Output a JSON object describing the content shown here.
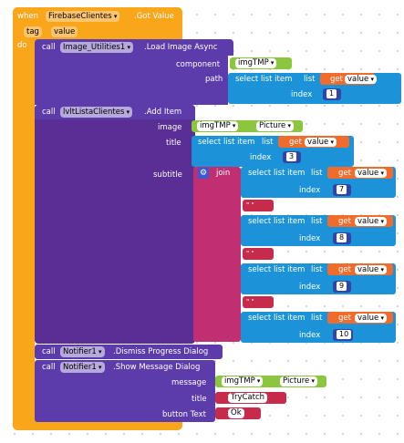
{
  "event": {
    "when": "when",
    "component": "FirebaseClientes",
    "event": ".Got Value",
    "param_tag": "tag",
    "param_value": "value",
    "do": "do"
  },
  "load": {
    "call": "call",
    "component": "Image_Utilities1",
    "method": ".Load Image Async",
    "arg_component": "component",
    "arg_path": "path",
    "var": "imgTMP",
    "select": "select list item",
    "list": "list",
    "get": "get",
    "value": "value",
    "index": "index",
    "index_val": "1"
  },
  "additem": {
    "call": "call",
    "component": "lvltListaClientes",
    "method": ".Add Item",
    "arg_image": "image",
    "arg_title": "title",
    "arg_subtitle": "subtitle",
    "var": "imgTMP",
    "prop": "Picture",
    "select": "select list item",
    "list": "list",
    "get": "get",
    "value": "value",
    "index": "index",
    "title_index": "3",
    "join": "join",
    "sub_indexes": [
      "7",
      "8",
      "9",
      "10"
    ],
    "quote": "\" \""
  },
  "dismiss": {
    "call": "call",
    "component": "Notifier1",
    "method": ".Dismiss Progress Dialog"
  },
  "show": {
    "call": "call",
    "component": "Notifier1",
    "method": ".Show Message Dialog",
    "arg_message": "message",
    "arg_title": "title",
    "arg_button": "button Text",
    "var": "imgTMP",
    "prop": "Picture",
    "title_val": "TryCatch",
    "button_val": "Ok"
  },
  "icons": {
    "mutator": "gear-icon",
    "dropdown": "chevron-down-icon"
  }
}
